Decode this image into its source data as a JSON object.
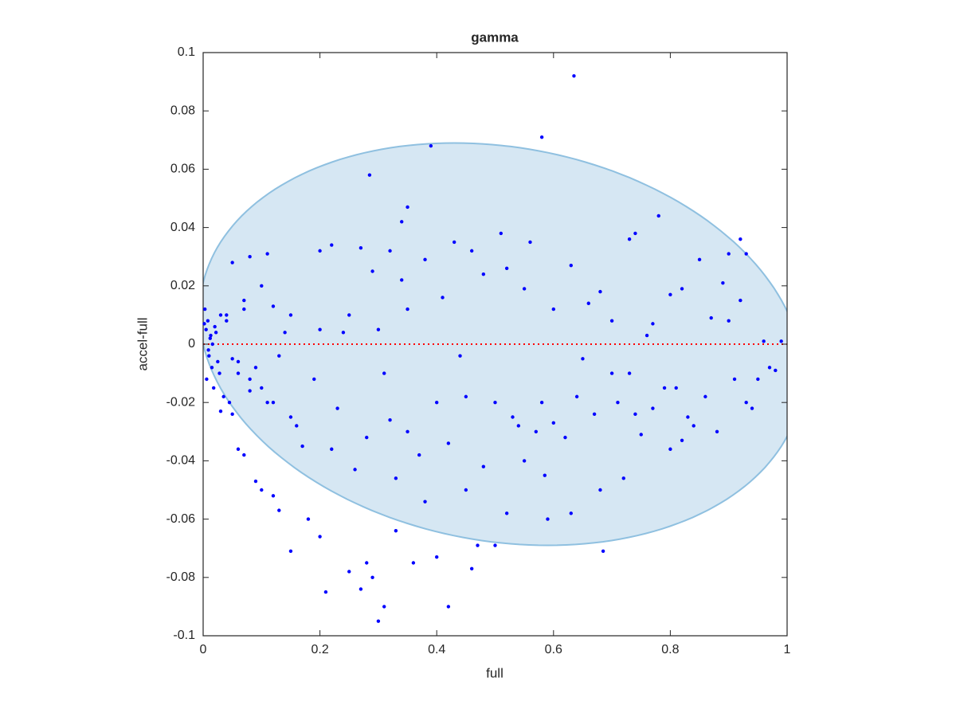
{
  "chart_data": {
    "type": "scatter",
    "title": "gamma",
    "x_label": "full",
    "y_label": "accel-full",
    "color": "#0000ff",
    "xlim": [
      0,
      1
    ],
    "ylim": [
      -0.1,
      0.1
    ],
    "xticks": [
      0,
      0.2,
      0.4,
      0.6,
      0.8,
      1
    ],
    "yticks": [
      -0.1,
      -0.08,
      -0.06,
      -0.04,
      -0.02,
      0,
      0.02,
      0.04,
      0.06,
      0.08,
      0.1
    ],
    "reference_line": {
      "y": 0,
      "color": "#ff0000"
    },
    "ellipse": {
      "center": [
        0.51,
        0
      ],
      "x_radius": 0.51,
      "y_radius": 0.069,
      "shear": -0.08,
      "fill": "#d6e7f3",
      "stroke": "#8fc0e0"
    },
    "x": [
      0.635,
      0.58,
      0.39,
      0.285,
      0.35,
      0.34,
      0.78,
      0.74,
      0.73,
      0.92,
      0.93,
      0.51,
      0.43,
      0.56,
      0.22,
      0.2,
      0.27,
      0.32,
      0.38,
      0.46,
      0.9,
      0.85,
      0.63,
      0.11,
      0.08,
      0.05,
      0.48,
      0.52,
      0.41,
      0.29,
      0.34,
      0.82,
      0.8,
      0.89,
      0.92,
      0.68,
      0.55,
      0.6,
      0.66,
      0.7,
      0.76,
      0.77,
      0.87,
      0.9,
      0.96,
      0.99,
      0.98,
      0.95,
      0.93,
      0.91,
      0.86,
      0.84,
      0.82,
      0.8,
      0.77,
      0.74,
      0.75,
      0.72,
      0.68,
      0.685,
      0.63,
      0.59,
      0.585,
      0.55,
      0.52,
      0.5,
      0.47,
      0.46,
      0.42,
      0.4,
      0.38,
      0.36,
      0.33,
      0.31,
      0.3,
      0.29,
      0.28,
      0.27,
      0.25,
      0.21,
      0.2,
      0.18,
      0.15,
      0.13,
      0.12,
      0.1,
      0.09,
      0.07,
      0.06,
      0.05,
      0.03,
      0.35,
      0.4,
      0.45,
      0.5,
      0.54,
      0.6,
      0.64,
      0.7,
      0.45,
      0.33,
      0.26,
      0.22,
      0.17,
      0.15,
      0.12,
      0.1,
      0.08,
      0.06,
      0.15,
      0.2,
      0.25,
      0.3,
      0.35,
      0.12,
      0.1,
      0.07,
      0.04,
      0.005,
      0.01,
      0.008,
      0.012,
      0.015,
      0.003,
      0.006,
      0.02,
      0.025,
      0.018,
      0.022,
      0.03,
      0.035,
      0.04,
      0.045,
      0.028,
      0.013,
      0.009,
      0.016,
      0.002,
      0.05,
      0.06,
      0.07,
      0.08,
      0.09,
      0.11,
      0.13,
      0.14,
      0.16,
      0.19,
      0.23,
      0.28,
      0.32,
      0.37,
      0.42,
      0.48,
      0.53,
      0.57,
      0.62,
      0.67,
      0.71,
      0.79,
      0.83,
      0.88,
      0.94,
      0.97,
      0.24,
      0.31,
      0.44,
      0.58,
      0.65,
      0.73,
      0.81
    ],
    "values": [
      0.092,
      0.071,
      0.068,
      0.058,
      0.047,
      0.042,
      0.044,
      0.038,
      0.036,
      0.036,
      0.031,
      0.038,
      0.035,
      0.035,
      0.034,
      0.032,
      0.033,
      0.032,
      0.029,
      0.032,
      0.031,
      0.029,
      0.027,
      0.031,
      0.03,
      0.028,
      0.024,
      0.026,
      0.016,
      0.025,
      0.022,
      0.019,
      0.017,
      0.021,
      0.015,
      0.018,
      0.019,
      0.012,
      0.014,
      0.008,
      0.003,
      0.007,
      0.009,
      0.008,
      0.001,
      0.001,
      -0.009,
      -0.012,
      -0.02,
      -0.012,
      -0.018,
      -0.028,
      -0.033,
      -0.036,
      -0.022,
      -0.024,
      -0.031,
      -0.046,
      -0.05,
      -0.071,
      -0.058,
      -0.06,
      -0.045,
      -0.04,
      -0.058,
      -0.069,
      -0.069,
      -0.077,
      -0.09,
      -0.073,
      -0.054,
      -0.075,
      -0.064,
      -0.09,
      -0.095,
      -0.08,
      -0.075,
      -0.084,
      -0.078,
      -0.085,
      -0.066,
      -0.06,
      -0.071,
      -0.057,
      -0.052,
      -0.05,
      -0.047,
      -0.038,
      -0.036,
      -0.024,
      -0.023,
      -0.03,
      -0.02,
      -0.018,
      -0.02,
      -0.028,
      -0.027,
      -0.018,
      -0.01,
      -0.05,
      -0.046,
      -0.043,
      -0.036,
      -0.035,
      -0.025,
      -0.02,
      -0.015,
      -0.012,
      -0.01,
      0.01,
      0.005,
      0.01,
      0.005,
      0.012,
      0.013,
      0.02,
      0.015,
      0.01,
      0.005,
      -0.004,
      0.008,
      0.002,
      -0.008,
      0.012,
      -0.012,
      0.006,
      -0.006,
      -0.015,
      0.004,
      0.01,
      -0.018,
      0.008,
      -0.02,
      -0.01,
      0.003,
      -0.002,
      0.0,
      0.007,
      -0.005,
      -0.006,
      0.012,
      -0.016,
      -0.008,
      -0.02,
      -0.004,
      0.004,
      -0.028,
      -0.012,
      -0.022,
      -0.032,
      -0.026,
      -0.038,
      -0.034,
      -0.042,
      -0.025,
      -0.03,
      -0.032,
      -0.024,
      -0.02,
      -0.015,
      -0.025,
      -0.03,
      -0.022,
      -0.008,
      0.004,
      -0.01,
      -0.004,
      -0.02,
      -0.005,
      -0.01,
      -0.015
    ]
  }
}
